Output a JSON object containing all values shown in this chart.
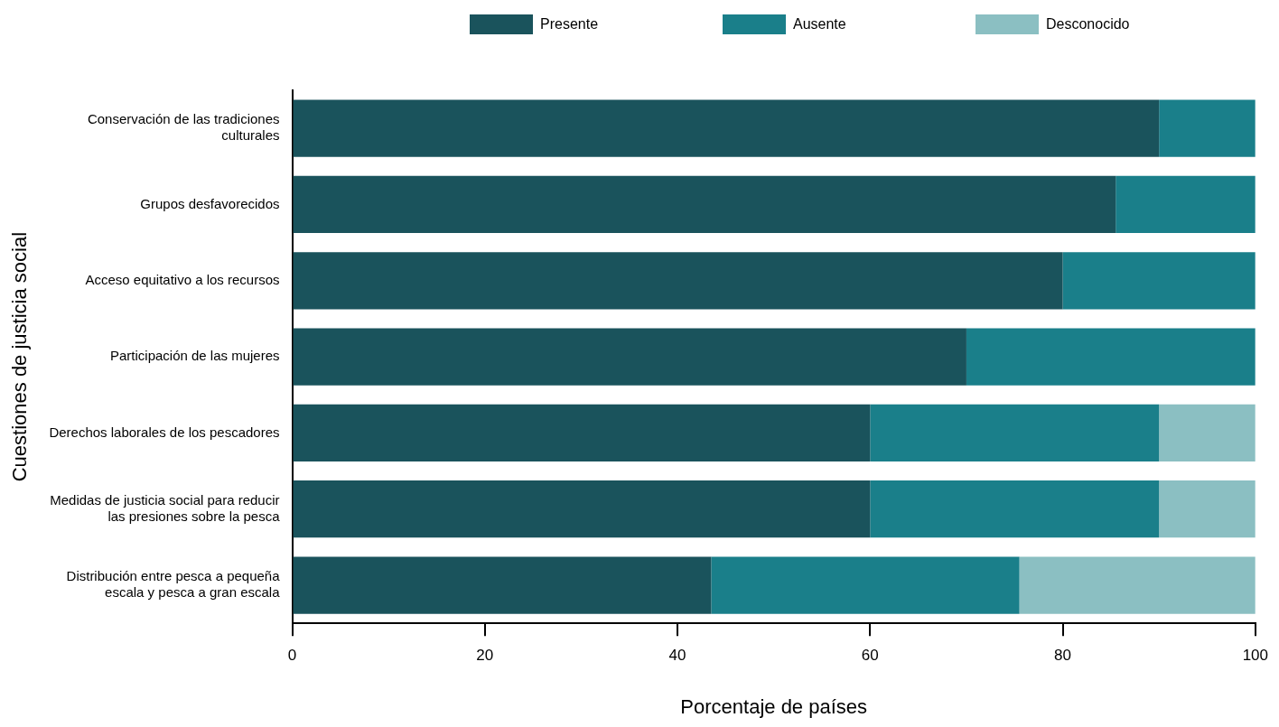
{
  "chart_data": {
    "type": "bar",
    "orientation": "horizontal",
    "stacked": true,
    "xlabel": "Porcentaje de países",
    "ylabel": "Cuestiones de justicia social",
    "categories": [
      "Conservación de las tradiciones culturales",
      "Grupos desfavorecidos",
      "Acceso equitativo a los recursos",
      "Participación de las mujeres",
      "Derechos laborales de los pescadores",
      "Medidas de justicia social para reducir las presiones sobre la pesca",
      "Distribución entre pesca a pequeña escala y pesca a gran escala"
    ],
    "series": [
      {
        "name": "Presente",
        "color": "#1a535c",
        "values": [
          90,
          85.5,
          80,
          70,
          60,
          60,
          43.5
        ]
      },
      {
        "name": "Ausente",
        "color": "#1a7f8a",
        "values": [
          10,
          14.5,
          20,
          30,
          30,
          30,
          32
        ]
      },
      {
        "name": "Desconocido",
        "color": "#8bbfc2",
        "values": [
          0,
          0,
          0,
          0,
          10,
          10,
          24.5
        ]
      }
    ],
    "xlim": [
      0,
      100
    ],
    "xticks": [
      0,
      20,
      40,
      60,
      80,
      100
    ],
    "grid": false,
    "legend": "top"
  }
}
